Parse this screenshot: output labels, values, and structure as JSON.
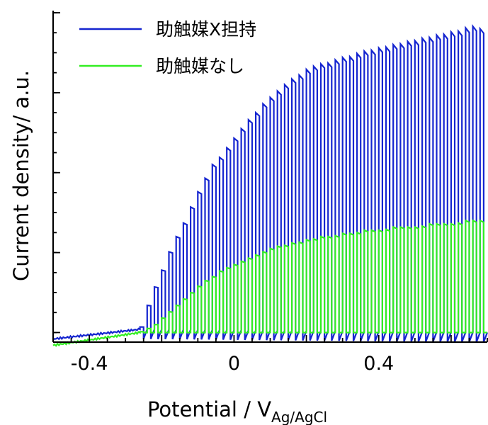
{
  "chart_data": {
    "type": "line",
    "xlabel": "Potential / V",
    "xlabel_subscript": "Ag/AgCl",
    "ylabel": "Current density/ a.u.",
    "xlim": [
      -0.5,
      0.7
    ],
    "ylim": [
      -0.03,
      1.0
    ],
    "x_ticks": [
      -0.4,
      0,
      0.4
    ],
    "x_tick_labels": [
      "-0.4",
      "0",
      "0.4"
    ],
    "y_tick_labels_shown": false,
    "grid": false,
    "legend_position": "top-left",
    "pulse_period_V": 0.02,
    "series": [
      {
        "name": "助触媒X担持",
        "color": "#1525d0",
        "dark_baseline": [
          [
            -0.5,
            -0.02
          ],
          [
            -0.26,
            0.01
          ],
          [
            0.7,
            0.0
          ]
        ],
        "light_on_envelope": [
          [
            -0.26,
            0.0
          ],
          [
            -0.24,
            0.07
          ],
          [
            -0.22,
            0.13
          ],
          [
            -0.2,
            0.18
          ],
          [
            -0.18,
            0.24
          ],
          [
            -0.16,
            0.29
          ],
          [
            -0.14,
            0.33
          ],
          [
            -0.12,
            0.38
          ],
          [
            -0.1,
            0.43
          ],
          [
            -0.08,
            0.47
          ],
          [
            -0.06,
            0.52
          ],
          [
            -0.04,
            0.54
          ],
          [
            -0.02,
            0.57
          ],
          [
            0.0,
            0.6
          ],
          [
            0.02,
            0.63
          ],
          [
            0.04,
            0.66
          ],
          [
            0.06,
            0.68
          ],
          [
            0.08,
            0.71
          ],
          [
            0.1,
            0.73
          ],
          [
            0.12,
            0.75
          ],
          [
            0.14,
            0.77
          ],
          [
            0.16,
            0.79
          ],
          [
            0.18,
            0.8
          ],
          [
            0.2,
            0.82
          ],
          [
            0.22,
            0.83
          ],
          [
            0.24,
            0.84
          ],
          [
            0.26,
            0.84
          ],
          [
            0.28,
            0.85
          ],
          [
            0.3,
            0.86
          ],
          [
            0.32,
            0.86
          ],
          [
            0.34,
            0.87
          ],
          [
            0.36,
            0.88
          ],
          [
            0.38,
            0.88
          ],
          [
            0.4,
            0.89
          ],
          [
            0.42,
            0.89
          ],
          [
            0.44,
            0.9
          ],
          [
            0.46,
            0.9
          ],
          [
            0.48,
            0.91
          ],
          [
            0.5,
            0.91
          ],
          [
            0.52,
            0.92
          ],
          [
            0.54,
            0.92
          ],
          [
            0.56,
            0.93
          ],
          [
            0.58,
            0.93
          ],
          [
            0.6,
            0.94
          ],
          [
            0.62,
            0.94
          ],
          [
            0.64,
            0.95
          ],
          [
            0.66,
            0.96
          ],
          [
            0.68,
            0.95
          ],
          [
            0.7,
            0.95
          ]
        ]
      },
      {
        "name": "助触媒なし",
        "color": "#33ee22",
        "dark_baseline": [
          [
            -0.5,
            -0.04
          ],
          [
            -0.26,
            0.0
          ],
          [
            0.7,
            0.0
          ]
        ],
        "light_on_envelope": [
          [
            -0.26,
            0.0
          ],
          [
            -0.24,
            0.01
          ],
          [
            -0.22,
            0.02
          ],
          [
            -0.2,
            0.04
          ],
          [
            -0.18,
            0.06
          ],
          [
            -0.16,
            0.08
          ],
          [
            -0.14,
            0.1
          ],
          [
            -0.12,
            0.12
          ],
          [
            -0.1,
            0.14
          ],
          [
            -0.08,
            0.16
          ],
          [
            -0.06,
            0.17
          ],
          [
            -0.04,
            0.19
          ],
          [
            -0.02,
            0.2
          ],
          [
            0.0,
            0.21
          ],
          [
            0.02,
            0.22
          ],
          [
            0.04,
            0.23
          ],
          [
            0.06,
            0.24
          ],
          [
            0.08,
            0.25
          ],
          [
            0.1,
            0.26
          ],
          [
            0.12,
            0.27
          ],
          [
            0.14,
            0.27
          ],
          [
            0.16,
            0.28
          ],
          [
            0.18,
            0.28
          ],
          [
            0.2,
            0.29
          ],
          [
            0.22,
            0.29
          ],
          [
            0.24,
            0.3
          ],
          [
            0.26,
            0.3
          ],
          [
            0.28,
            0.3
          ],
          [
            0.3,
            0.31
          ],
          [
            0.32,
            0.31
          ],
          [
            0.34,
            0.31
          ],
          [
            0.36,
            0.32
          ],
          [
            0.38,
            0.32
          ],
          [
            0.4,
            0.32
          ],
          [
            0.42,
            0.32
          ],
          [
            0.44,
            0.33
          ],
          [
            0.46,
            0.33
          ],
          [
            0.48,
            0.33
          ],
          [
            0.5,
            0.33
          ],
          [
            0.52,
            0.33
          ],
          [
            0.54,
            0.34
          ],
          [
            0.56,
            0.34
          ],
          [
            0.58,
            0.34
          ],
          [
            0.6,
            0.34
          ],
          [
            0.62,
            0.34
          ],
          [
            0.64,
            0.35
          ],
          [
            0.66,
            0.35
          ],
          [
            0.68,
            0.35
          ],
          [
            0.7,
            0.35
          ]
        ]
      }
    ]
  }
}
